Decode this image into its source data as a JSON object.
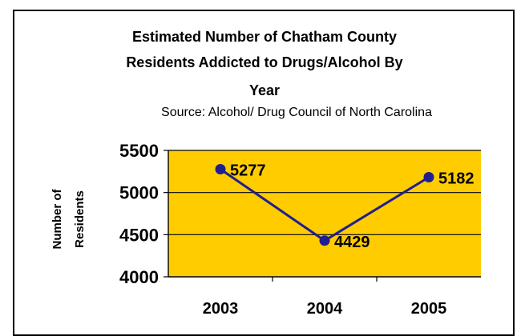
{
  "chart_data": {
    "type": "line",
    "title_lines": [
      "Estimated Number of Chatham County",
      "Residents Addicted to Drugs/Alcohol By",
      "Year"
    ],
    "subtitle": "Source: Alcohol/ Drug Council of North Carolina",
    "ylabel_lines": [
      "Number of",
      "Residents"
    ],
    "xlabel": "",
    "categories": [
      "2003",
      "2004",
      "2005"
    ],
    "series": [
      {
        "values": [
          5277,
          4429,
          5182
        ],
        "color": "#1f1f8f"
      }
    ],
    "data_labels": [
      "5277",
      "4429",
      "5182"
    ],
    "ylim": [
      4000,
      5500
    ],
    "yticks": [
      4000,
      4500,
      5000,
      5500
    ],
    "grid": true,
    "plot_background": "#ffcc00",
    "gridline_color": "#000000"
  }
}
